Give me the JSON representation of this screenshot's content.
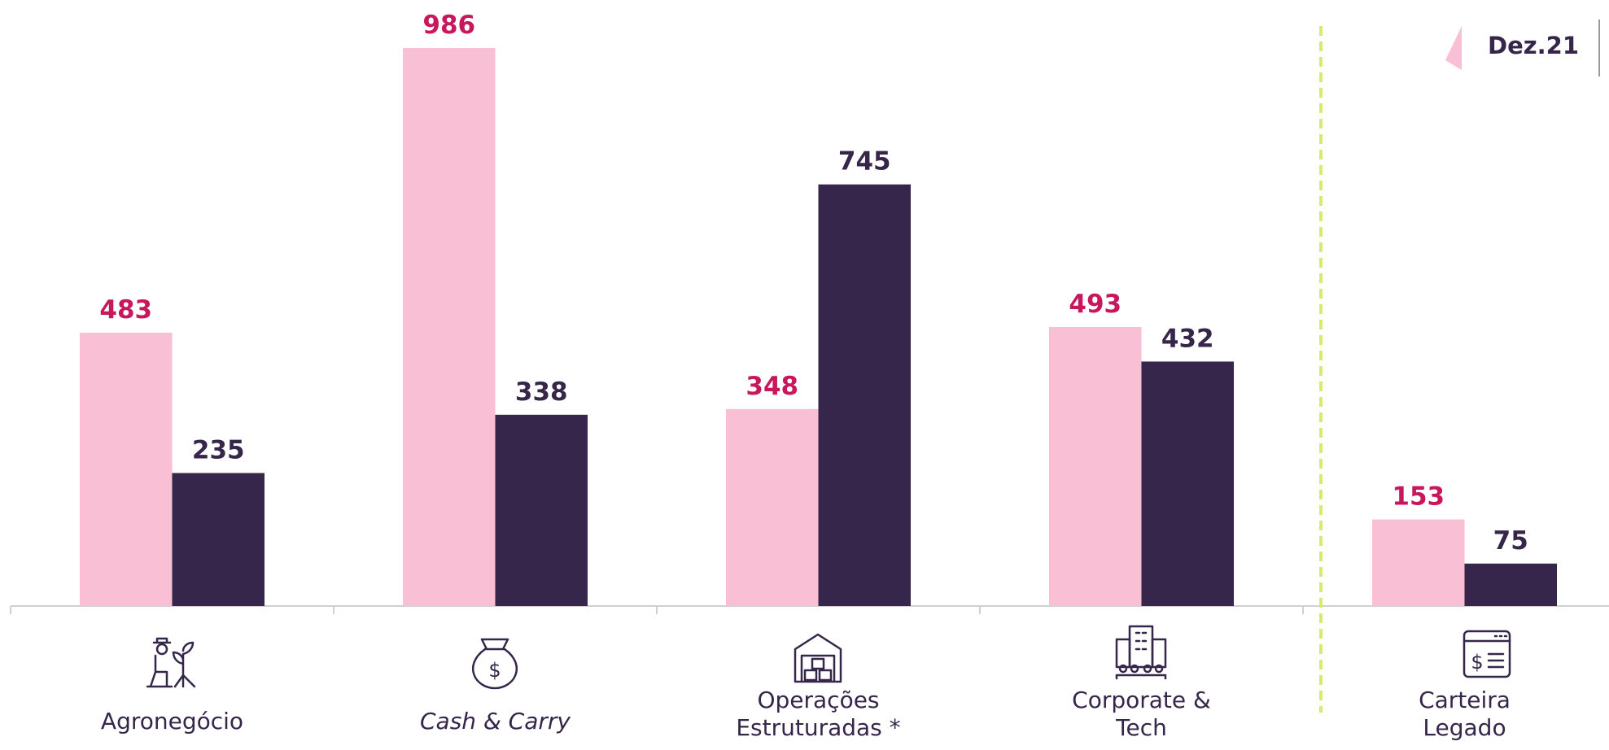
{
  "chart_data": {
    "type": "bar",
    "categories": [
      "Agronegócio",
      "Cash & Carry",
      "Operações Estruturadas *",
      "Corporate & Tech",
      "Carteira Legado"
    ],
    "series": [
      {
        "name": "Dez.21",
        "color": "#f8bfd5",
        "label_color": "#c8175d",
        "values": [
          483,
          986,
          348,
          493,
          153
        ]
      },
      {
        "color": "#36264c",
        "label_color": "#35264a",
        "values": [
          235,
          338,
          745,
          432,
          75
        ]
      }
    ],
    "legend": "top-right",
    "grid": false
  }
}
